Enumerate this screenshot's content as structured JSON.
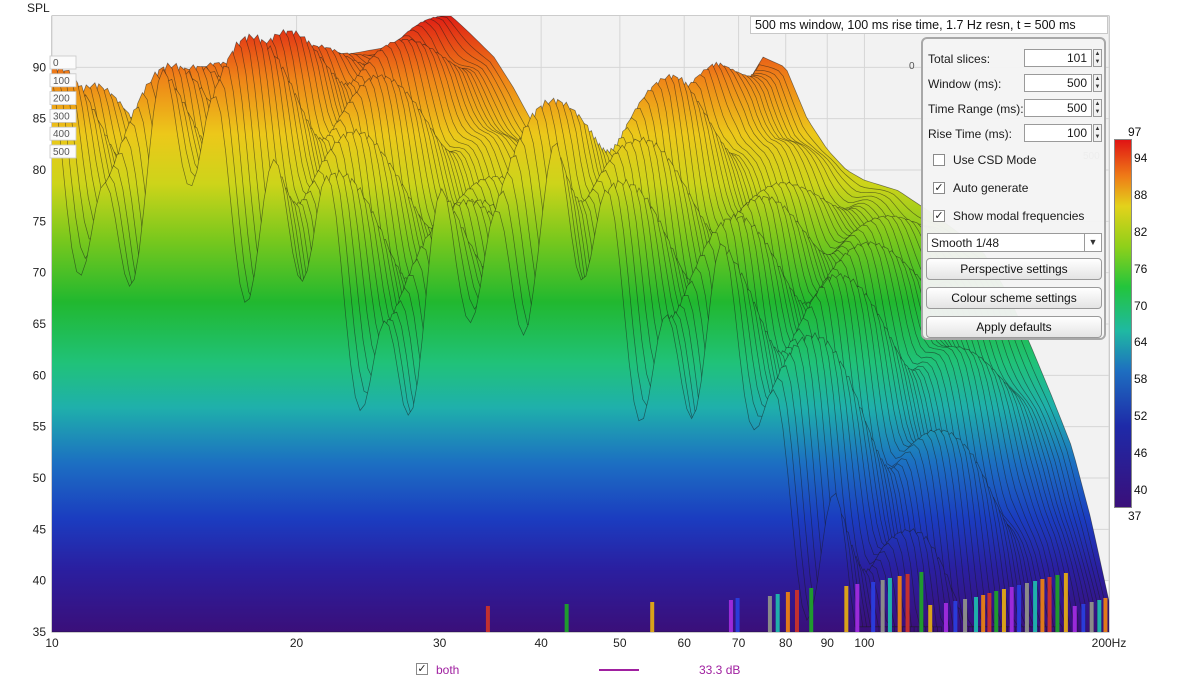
{
  "window_caption": "500 ms window, 100 ms rise time,  1.7 Hz resn, t = 500 ms",
  "chart_data": {
    "type": "waterfall",
    "ylabel": "SPL",
    "x_scale": "log",
    "x_range": [
      10,
      200
    ],
    "x_ticks": [
      "10",
      "20",
      "30",
      "40",
      "50",
      "60",
      "70",
      "80",
      "90",
      "100",
      "200Hz"
    ],
    "y_range": [
      35,
      95
    ],
    "y_ticks": [
      "35",
      "40",
      "45",
      "50",
      "55",
      "60",
      "65",
      "70",
      "75",
      "80",
      "85",
      "90"
    ],
    "time_slice_labels_ms": [
      "0",
      "100",
      "200",
      "300",
      "400",
      "500"
    ],
    "slice_count": 101,
    "grid": true,
    "first_slice": {
      "x": [
        10,
        12,
        14,
        16,
        18,
        19,
        20,
        22,
        24,
        26,
        28,
        30,
        31,
        32,
        33,
        35,
        37,
        40,
        44,
        48,
        52,
        56,
        60,
        65,
        70,
        75,
        80,
        85,
        90,
        95,
        100,
        110,
        120,
        130,
        140,
        150,
        160,
        170,
        180,
        190,
        200
      ],
      "y": [
        73.5,
        74.5,
        78,
        84,
        90,
        91.5,
        91,
        91,
        91.5,
        92,
        93.5,
        95,
        95,
        94,
        93,
        91,
        88,
        83,
        80,
        78,
        77,
        81,
        79,
        83,
        87,
        91,
        90,
        85,
        82,
        80,
        79,
        78,
        76,
        74,
        72,
        68,
        63,
        58,
        53,
        46,
        38
      ]
    },
    "modal_frequencies_hz": [
      34.4,
      43.0,
      54.8,
      68.5,
      69.8,
      76.5,
      78.2,
      80.5,
      82.6,
      86.0,
      95.0,
      98.0,
      102.5,
      105.3,
      107.5,
      110.5,
      113.0,
      117.5,
      120.5,
      126.0,
      129.4,
      133.0,
      137.2,
      140.0,
      142.5,
      145.3,
      148.5,
      151.8,
      155.0,
      158.5,
      162.2,
      165.6,
      169.0,
      172.8,
      177.0,
      181.5,
      186.0,
      190.4,
      194.6,
      198.0
    ]
  },
  "colorbar": {
    "min_label": "37",
    "max_label": "97",
    "tick_labels": [
      "94",
      "88",
      "82",
      "76",
      "70",
      "64",
      "58",
      "52",
      "46",
      "40"
    ],
    "min": 37,
    "max": 97
  },
  "panel": {
    "fields": [
      {
        "label": "Total slices:",
        "value": "101"
      },
      {
        "label": "Window (ms):",
        "value": "500"
      },
      {
        "label": "Time Range (ms):",
        "value": "500"
      },
      {
        "label": "Rise Time (ms):",
        "value": "100"
      }
    ],
    "checks": [
      {
        "label": "Use CSD Mode",
        "mark": ""
      },
      {
        "label": "Auto generate",
        "mark": "✓"
      },
      {
        "label": "Show modal frequencies",
        "mark": "✓"
      }
    ],
    "smoothing": "Smooth 1/48",
    "buttons": [
      "Perspective settings",
      "Colour scheme settings",
      "Apply defaults"
    ]
  },
  "legend": {
    "check_mark": "✓",
    "name": "both",
    "offset_value": "33.3 dB"
  }
}
